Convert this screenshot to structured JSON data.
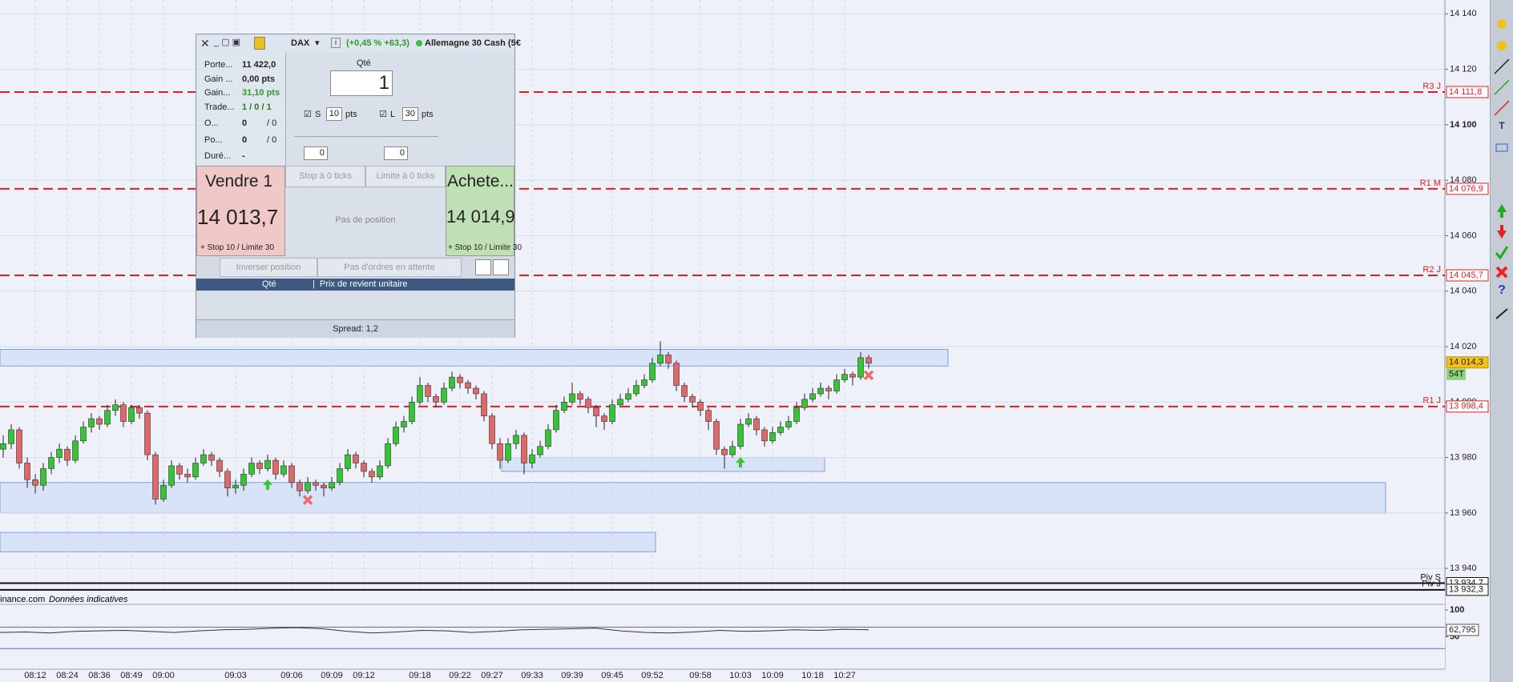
{
  "chart_data": {
    "type": "candlestick",
    "categories": [
      null,
      null,
      null,
      null,
      "08:12",
      null,
      null,
      null,
      "08:24",
      null,
      null,
      null,
      "08:36",
      null,
      null,
      null,
      "08:49",
      null,
      null,
      null,
      "09:00",
      null,
      null,
      null,
      null,
      null,
      null,
      null,
      null,
      "09:03",
      null,
      null,
      null,
      null,
      null,
      null,
      "09:06",
      null,
      null,
      null,
      null,
      "09:09",
      null,
      null,
      null,
      "09:12",
      null,
      null,
      null,
      null,
      null,
      null,
      "09:18",
      null,
      null,
      null,
      null,
      "09:22",
      null,
      null,
      null,
      "09:27",
      null,
      null,
      null,
      null,
      "09:33",
      null,
      null,
      null,
      null,
      "09:39",
      null,
      null,
      null,
      null,
      "09:45",
      null,
      null,
      null,
      null,
      "09:52",
      null,
      null,
      null,
      null,
      null,
      "09:58",
      null,
      null,
      null,
      null,
      "10:03",
      null,
      null,
      null,
      "10:09",
      null,
      null,
      null,
      null,
      "10:18",
      null,
      null,
      null,
      "10:27",
      null,
      null,
      null
    ],
    "candles": [
      [
        13983,
        13988,
        13980,
        13985
      ],
      [
        13985,
        13992,
        13983,
        13990
      ],
      [
        13990,
        13991,
        13976,
        13978
      ],
      [
        13978,
        13980,
        13969,
        13972
      ],
      [
        13972,
        13974,
        13967,
        13970
      ],
      [
        13970,
        13978,
        13968,
        13976
      ],
      [
        13976,
        13982,
        13974,
        13980
      ],
      [
        13980,
        13985,
        13978,
        13983
      ],
      [
        13983,
        13984,
        13977,
        13979
      ],
      [
        13979,
        13988,
        13978,
        13986
      ],
      [
        13986,
        13993,
        13985,
        13991
      ],
      [
        13991,
        13996,
        13989,
        13994
      ],
      [
        13994,
        13995,
        13990,
        13992
      ],
      [
        13992,
        13999,
        13991,
        13997
      ],
      [
        13997,
        14001,
        13995,
        13999
      ],
      [
        13999,
        14000,
        13991,
        13993
      ],
      [
        13993,
        13999,
        13992,
        13998
      ],
      [
        13998,
        13999,
        13994,
        13996
      ],
      [
        13996,
        13997,
        13979,
        13981
      ],
      [
        13981,
        13982,
        13963,
        13965
      ],
      [
        13965,
        13972,
        13964,
        13970
      ],
      [
        13970,
        13979,
        13969,
        13977
      ],
      [
        13977,
        13978,
        13972,
        13974
      ],
      [
        13974,
        13976,
        13971,
        13973
      ],
      [
        13973,
        13980,
        13972,
        13978
      ],
      [
        13978,
        13983,
        13977,
        13981
      ],
      [
        13981,
        13982,
        13977,
        13979
      ],
      [
        13979,
        13980,
        13973,
        13975
      ],
      [
        13975,
        13976,
        13966,
        13969
      ],
      [
        13969,
        13972,
        13967,
        13970
      ],
      [
        13970,
        13976,
        13968,
        13974
      ],
      [
        13974,
        13980,
        13973,
        13978
      ],
      [
        13978,
        13979,
        13974,
        13976
      ],
      [
        13976,
        13981,
        13975,
        13979
      ],
      [
        13979,
        13980,
        13972,
        13974
      ],
      [
        13974,
        13979,
        13973,
        13977
      ],
      [
        13977,
        13978,
        13969,
        13971
      ],
      [
        13971,
        13972,
        13966,
        13968
      ],
      [
        13968,
        13973,
        13967,
        13971
      ],
      [
        13971,
        13972,
        13968,
        13970
      ],
      [
        13970,
        13971,
        13966,
        13969
      ],
      [
        13969,
        13973,
        13968,
        13971
      ],
      [
        13971,
        13978,
        13970,
        13976
      ],
      [
        13976,
        13983,
        13975,
        13981
      ],
      [
        13981,
        13982,
        13976,
        13978
      ],
      [
        13978,
        13979,
        13973,
        13975
      ],
      [
        13975,
        13976,
        13971,
        13973
      ],
      [
        13973,
        13979,
        13972,
        13977
      ],
      [
        13977,
        13987,
        13976,
        13985
      ],
      [
        13985,
        13993,
        13984,
        13991
      ],
      [
        13991,
        13995,
        13989,
        13993
      ],
      [
        13993,
        14002,
        13992,
        14000
      ],
      [
        14000,
        14009,
        13999,
        14006
      ],
      [
        14006,
        14007,
        14000,
        14002
      ],
      [
        14002,
        14003,
        13998,
        14000
      ],
      [
        14000,
        14007,
        13999,
        14005
      ],
      [
        14005,
        14011,
        14004,
        14009
      ],
      [
        14009,
        14010,
        14005,
        14007
      ],
      [
        14007,
        14008,
        14003,
        14005
      ],
      [
        14005,
        14006,
        14001,
        14003
      ],
      [
        14003,
        14004,
        13993,
        13995
      ],
      [
        13995,
        13996,
        13983,
        13985
      ],
      [
        13985,
        13987,
        13976,
        13979
      ],
      [
        13979,
        13987,
        13978,
        13985
      ],
      [
        13985,
        13990,
        13983,
        13988
      ],
      [
        13988,
        13989,
        13974,
        13978
      ],
      [
        13978,
        13983,
        13976,
        13981
      ],
      [
        13981,
        13986,
        13980,
        13984
      ],
      [
        13984,
        13992,
        13983,
        13990
      ],
      [
        13990,
        13999,
        13989,
        13997
      ],
      [
        13997,
        14002,
        13996,
        14000
      ],
      [
        14000,
        14007,
        13999,
        14003
      ],
      [
        14003,
        14004,
        13999,
        14001
      ],
      [
        14001,
        14002,
        13996,
        13998
      ],
      [
        13998,
        13999,
        13991,
        13995
      ],
      [
        13995,
        13996,
        13990,
        13993
      ],
      [
        13993,
        14001,
        13992,
        13999
      ],
      [
        13999,
        14003,
        13998,
        14001
      ],
      [
        14001,
        14005,
        14000,
        14003
      ],
      [
        14003,
        14008,
        14002,
        14006
      ],
      [
        14006,
        14010,
        14005,
        14008
      ],
      [
        14008,
        14016,
        14007,
        14014
      ],
      [
        14014,
        14022,
        14013,
        14017
      ],
      [
        14017,
        14018,
        14012,
        14014
      ],
      [
        14014,
        14015,
        14004,
        14006
      ],
      [
        14006,
        14007,
        14000,
        14002
      ],
      [
        14002,
        14003,
        13998,
        14000
      ],
      [
        14000,
        14001,
        13995,
        13997
      ],
      [
        13997,
        13998,
        13990,
        13993
      ],
      [
        13993,
        13994,
        13981,
        13983
      ],
      [
        13983,
        13984,
        13976,
        13981
      ],
      [
        13981,
        13986,
        13980,
        13984
      ],
      [
        13984,
        13994,
        13983,
        13992
      ],
      [
        13992,
        13996,
        13991,
        13994
      ],
      [
        13994,
        13995,
        13988,
        13990
      ],
      [
        13990,
        13991,
        13984,
        13986
      ],
      [
        13986,
        13991,
        13985,
        13989
      ],
      [
        13989,
        13993,
        13988,
        13991
      ],
      [
        13991,
        13995,
        13990,
        13993
      ],
      [
        13993,
        14000,
        13992,
        13998
      ],
      [
        13998,
        14003,
        13997,
        14001
      ],
      [
        14001,
        14005,
        14000,
        14003
      ],
      [
        14003,
        14007,
        14002,
        14005
      ],
      [
        14005,
        14006,
        14001,
        14004
      ],
      [
        14004,
        14010,
        14003,
        14008
      ],
      [
        14008,
        14012,
        14007,
        14010
      ],
      [
        14010,
        14011,
        14006,
        14009
      ],
      [
        14009,
        14018,
        14008,
        14016
      ],
      [
        14016,
        14017,
        14012,
        14014
      ]
    ],
    "up_color": "#35c435",
    "down_color": "#e06868",
    "ylim": [
      13936,
      14145
    ],
    "yticks": [
      {
        "value": 13940,
        "label": "13 940"
      },
      {
        "value": 13960,
        "label": "13 960"
      },
      {
        "value": 13980,
        "label": "13 980"
      },
      {
        "value": 14000,
        "label": "14 000"
      },
      {
        "value": 14020,
        "label": "14 020"
      },
      {
        "value": 14040,
        "label": "14 040"
      },
      {
        "value": 14060,
        "label": "14 060"
      },
      {
        "value": 14080,
        "label": "14 080"
      },
      {
        "value": 14100,
        "label": "14 100"
      },
      {
        "value": 14120,
        "label": "14 120"
      },
      {
        "value": 14140,
        "label": "14 140"
      }
    ],
    "grid": true,
    "levels": {
      "names": [
        "R3 J",
        "R1 M",
        "R2 J",
        "R1 J",
        "Piv S",
        "Piv J"
      ],
      "values": [
        14111.8,
        14076.9,
        14045.7,
        13998.4,
        13934.7,
        13932.3
      ],
      "value_labels": [
        "14 111,8",
        "14 076,9",
        "14 045,7",
        "13 998,4",
        "13 934,7",
        "13 932,3"
      ],
      "colors": [
        "#e02020",
        "#e02020",
        "#e02020",
        "#e02020",
        "#111111",
        "#111111"
      ],
      "dashed": [
        true,
        true,
        true,
        true,
        false,
        false
      ]
    },
    "zones": [
      {
        "low": 14013,
        "high": 14019
      },
      {
        "low": 13975,
        "high": 13980
      },
      {
        "low": 13960,
        "high": 13971
      },
      {
        "low": 13946,
        "high": 13953
      }
    ],
    "zone_color": "#c9d7f5",
    "last_price": {
      "value": 14014.3,
      "label": "14 014,3",
      "countdown": "54T"
    },
    "source": "inance.com",
    "source_note": "Données indicatives",
    "oscillator": {
      "values": [
        58,
        59,
        57,
        60,
        61,
        62,
        60,
        58,
        61,
        63,
        64,
        66,
        67,
        65,
        60,
        57,
        59,
        62,
        61,
        58,
        60,
        63,
        64,
        65,
        66,
        61,
        58,
        57,
        59,
        62,
        60,
        61,
        63,
        62,
        64,
        63
      ],
      "ylim": [
        -6,
        109
      ],
      "yticks": [
        50,
        100
      ],
      "bands": [
        68,
        28
      ],
      "color": "#333333",
      "band_color": "#6f5fd6",
      "last": {
        "value": 62.795,
        "label": "62,795"
      }
    }
  },
  "order_panel": {
    "instrument": "DAX",
    "change": "(+0,45 % +63,3)",
    "market": "Allemagne 30 Cash (5€",
    "stats": [
      [
        "Porte...",
        "11 422,0"
      ],
      [
        "Gain ...",
        "0,00 pts"
      ],
      [
        "Gain...",
        "31,10 pts"
      ],
      [
        "Trade...",
        "1 / 0 / 1"
      ],
      [
        "O...",
        "0",
        "/ 0"
      ],
      [
        "Po...",
        "0",
        "/ 0"
      ],
      [
        "Duré...",
        "-"
      ]
    ],
    "qty_label": "Qté",
    "qty": "1",
    "stop_label": "S",
    "stop": "10",
    "stop_unit": "pts",
    "limit_label": "L",
    "limit": "30",
    "limit_unit": "pts",
    "spin1": "0",
    "spin2": "0",
    "sell_label": "Vendre 1",
    "sell_price": "14 013,7",
    "sell_note": "+ Stop 10 / Limite 30",
    "stop_ticks": "Stop à 0 ticks",
    "limit_ticks": "Limite à 0 ticks",
    "position": "Pas de position",
    "buy_label": "Achete...",
    "buy_price": "14 014,9",
    "buy_note": "+ Stop 10 / Limite 30",
    "reverse": "Inverser position",
    "pending": "Pas d'ordres en attente",
    "col_qty": "Qté",
    "col_price": "Prix de revient unitaire",
    "spread": "Spread: 1,2"
  }
}
